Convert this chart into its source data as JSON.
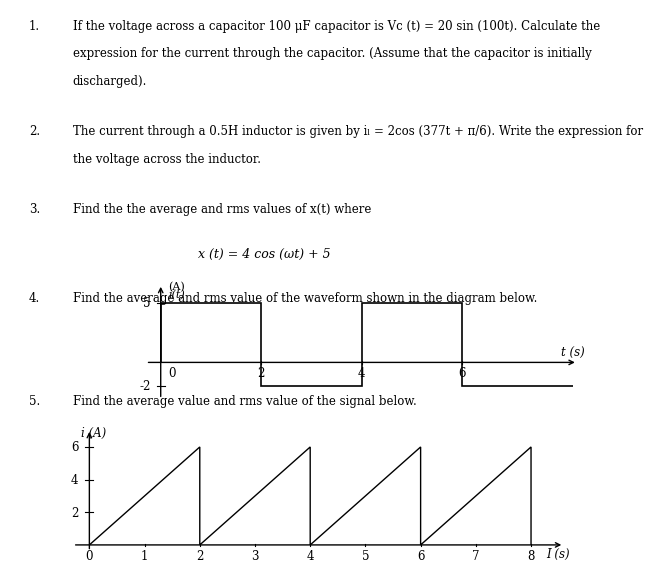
{
  "background_color": "#ffffff",
  "text_color": "#000000",
  "fs": 8.5,
  "fs_eq": 9.0,
  "item1_lines": [
    "If the voltage across a capacitor 100 μF capacitor is Vc (t) = 20 sin (100t). Calculate the",
    "expression for the current through the capacitor. (Assume that the capacitor is initially",
    "discharged)."
  ],
  "item2_lines": [
    "The current through a 0.5H inductor is given by iₗ = 2cos (377t + π/6). Write the expression for",
    "the voltage across the inductor."
  ],
  "item3_lines": [
    "Find the the average and rms values of x(t) where"
  ],
  "eq3": "x (t) = 4 cos (ωt) + 5",
  "item4_lines": [
    "Find the average and rms value of the waveform shown in the diagram below."
  ],
  "item5_lines": [
    "Find the average value and rms value of the signal below."
  ],
  "waveform4": {
    "ylabel_top": "(A)",
    "ylabel_bot": "i(t)",
    "xlabel": "t (s)",
    "xmin": -0.5,
    "xmax": 8.5,
    "ymin": -3.2,
    "ymax": 7.0,
    "signal_t": [
      0,
      0,
      2,
      2,
      4,
      4,
      6,
      6,
      8.2
    ],
    "signal_v": [
      0,
      5,
      5,
      -2,
      -2,
      5,
      5,
      -2,
      -2
    ]
  },
  "waveform5": {
    "ylabel": "i (A)",
    "xlabel": "I (s)",
    "xmin": -0.3,
    "xmax": 8.8,
    "ymin": -0.6,
    "ymax": 7.5,
    "signal_t": [
      0,
      2,
      2,
      4,
      4,
      6,
      6,
      8,
      8
    ],
    "signal_v": [
      0,
      6,
      0,
      6,
      0,
      6,
      0,
      6,
      0
    ]
  }
}
